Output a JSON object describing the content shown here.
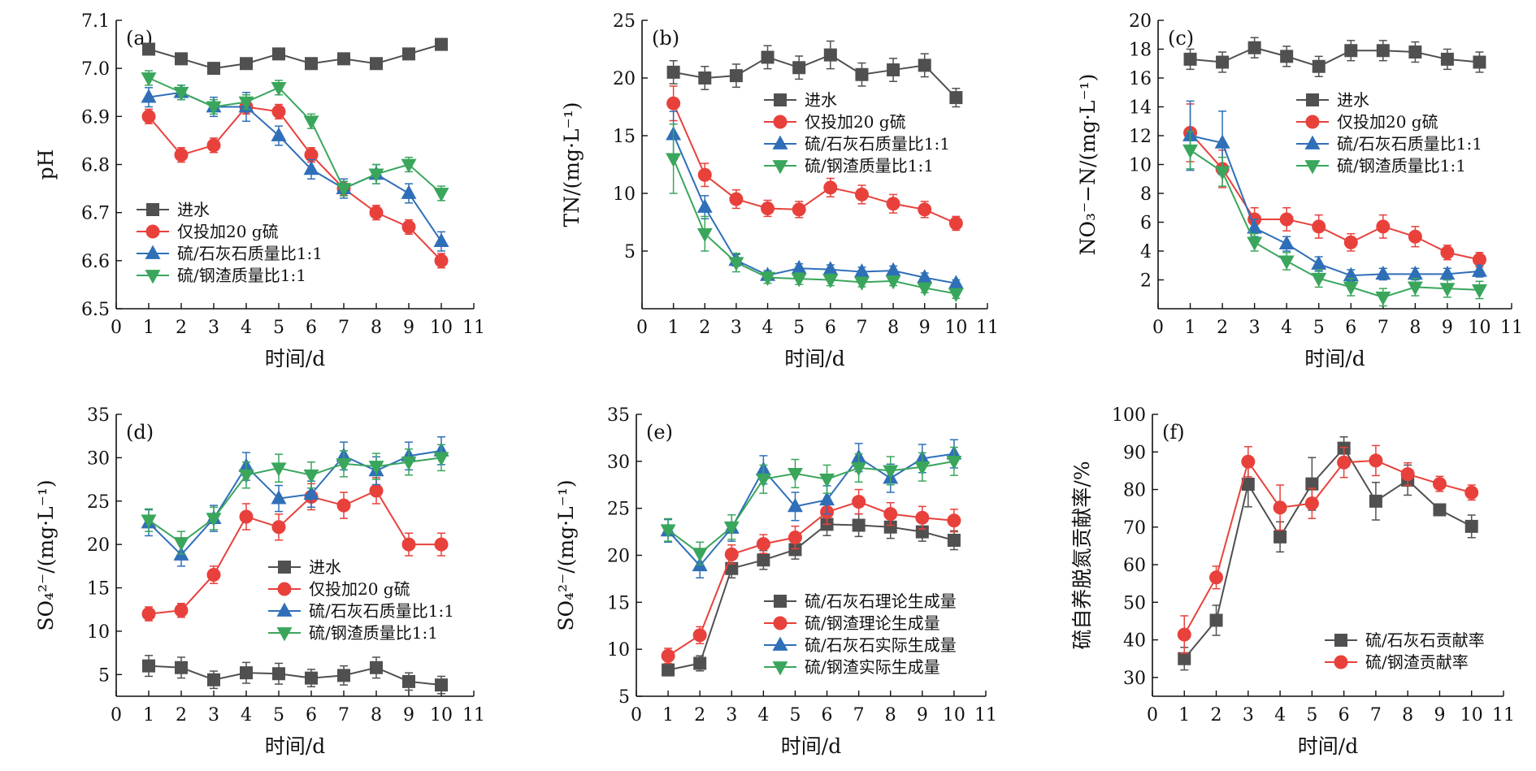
{
  "figure": {
    "x_axis_title": "时间/d"
  },
  "chart_data": [
    {
      "type": "line",
      "panel_label": "(a)",
      "ylabel": "pH",
      "xlabel": "时间/d",
      "xlim": [
        0,
        11
      ],
      "ylim": [
        6.5,
        7.1
      ],
      "yticks": [
        6.5,
        6.6,
        6.7,
        6.8,
        6.9,
        7.0,
        7.1
      ],
      "ytick_labels": [
        "6.5",
        "6.6",
        "6.7",
        "6.8",
        "6.9",
        "7.0",
        "7.1"
      ],
      "xticks": [
        0,
        1,
        2,
        3,
        4,
        5,
        6,
        7,
        8,
        9,
        10,
        11
      ],
      "x": [
        1,
        2,
        3,
        4,
        5,
        6,
        7,
        8,
        9,
        10
      ],
      "legend_position": "lower-left",
      "series": [
        {
          "name": "进水",
          "marker": "square",
          "color": "#505050",
          "values": [
            7.04,
            7.02,
            7.0,
            7.01,
            7.03,
            7.01,
            7.02,
            7.01,
            7.03,
            7.05
          ],
          "err": [
            0.01,
            0.01,
            0.01,
            0.01,
            0.01,
            0.01,
            0.01,
            0.01,
            0.01,
            0.01
          ]
        },
        {
          "name": "仅投加20 g硫",
          "marker": "circle",
          "color": "#e8413c",
          "values": [
            6.9,
            6.82,
            6.84,
            6.92,
            6.91,
            6.82,
            6.75,
            6.7,
            6.67,
            6.6
          ],
          "err": [
            0.015,
            0.015,
            0.015,
            0.015,
            0.015,
            0.015,
            0.015,
            0.015,
            0.015,
            0.015
          ]
        },
        {
          "name": "硫/石灰石质量比1:1",
          "marker": "triangle-up",
          "color": "#2f6fb8",
          "values": [
            6.94,
            6.95,
            6.92,
            6.92,
            6.86,
            6.79,
            6.75,
            6.78,
            6.74,
            6.64
          ],
          "err": [
            0.02,
            0.015,
            0.02,
            0.03,
            0.02,
            0.02,
            0.02,
            0.02,
            0.02,
            0.02
          ]
        },
        {
          "name": "硫/钢渣质量比1:1",
          "marker": "triangle-down",
          "color": "#3aa65c",
          "values": [
            6.98,
            6.95,
            6.92,
            6.93,
            6.96,
            6.89,
            6.75,
            6.78,
            6.8,
            6.74
          ],
          "err": [
            0.015,
            0.015,
            0.015,
            0.015,
            0.015,
            0.015,
            0.015,
            0.02,
            0.015,
            0.015
          ]
        }
      ]
    },
    {
      "type": "line",
      "panel_label": "(b)",
      "ylabel": "TN/(mg·L⁻¹)",
      "xlabel": "时间/d",
      "xlim": [
        0,
        11
      ],
      "ylim": [
        0,
        25
      ],
      "yticks": [
        5,
        10,
        15,
        20,
        25
      ],
      "ytick_labels": [
        "5",
        "10",
        "15",
        "20",
        "25"
      ],
      "xticks": [
        0,
        1,
        2,
        3,
        4,
        5,
        6,
        7,
        8,
        9,
        10,
        11
      ],
      "x": [
        1,
        2,
        3,
        4,
        5,
        6,
        7,
        8,
        9,
        10
      ],
      "legend_position": "top-right",
      "series": [
        {
          "name": "进水",
          "marker": "square",
          "color": "#505050",
          "values": [
            20.5,
            20.0,
            20.2,
            21.8,
            20.9,
            22.0,
            20.3,
            20.7,
            21.1,
            18.3
          ],
          "err": [
            1.0,
            1.0,
            1.0,
            1.0,
            1.0,
            1.2,
            1.0,
            1.0,
            1.0,
            0.8
          ]
        },
        {
          "name": "仅投加20 g硫",
          "marker": "circle",
          "color": "#e8413c",
          "values": [
            17.8,
            11.6,
            9.5,
            8.7,
            8.6,
            10.5,
            9.9,
            9.1,
            8.6,
            7.4
          ],
          "err": [
            1.5,
            1.0,
            0.8,
            0.7,
            0.7,
            0.8,
            0.8,
            0.8,
            0.7,
            0.6
          ]
        },
        {
          "name": "硫/石灰石质量比1:1",
          "marker": "triangle-up",
          "color": "#2f6fb8",
          "values": [
            15.1,
            8.8,
            4.2,
            2.9,
            3.5,
            3.4,
            3.2,
            3.3,
            2.7,
            2.2
          ],
          "err": [
            2.0,
            1.0,
            0.5,
            0.4,
            0.4,
            0.4,
            0.4,
            0.4,
            0.4,
            0.3
          ]
        },
        {
          "name": "硫/钢渣质量比1:1",
          "marker": "triangle-down",
          "color": "#3aa65c",
          "values": [
            13.0,
            6.5,
            4.0,
            2.7,
            2.6,
            2.5,
            2.3,
            2.4,
            1.8,
            1.3
          ],
          "err": [
            3.0,
            1.5,
            0.8,
            0.5,
            0.5,
            0.5,
            0.4,
            0.4,
            0.4,
            0.4
          ]
        }
      ]
    },
    {
      "type": "line",
      "panel_label": "(c)",
      "ylabel": "NO₃⁻−N/(mg·L⁻¹)",
      "xlabel": "时间/d",
      "xlim": [
        0,
        11
      ],
      "ylim": [
        0,
        20
      ],
      "yticks": [
        2,
        4,
        6,
        8,
        10,
        12,
        14,
        16,
        18,
        20
      ],
      "ytick_labels": [
        "2",
        "4",
        "6",
        "8",
        "10",
        "12",
        "14",
        "16",
        "18",
        "20"
      ],
      "xticks": [
        0,
        1,
        2,
        3,
        4,
        5,
        6,
        7,
        8,
        9,
        10,
        11
      ],
      "x": [
        1,
        2,
        3,
        4,
        5,
        6,
        7,
        8,
        9,
        10
      ],
      "legend_position": "top-right",
      "series": [
        {
          "name": "进水",
          "marker": "square",
          "color": "#505050",
          "values": [
            17.3,
            17.1,
            18.1,
            17.5,
            16.8,
            17.9,
            17.9,
            17.8,
            17.3,
            17.1
          ],
          "err": [
            0.7,
            0.7,
            0.7,
            0.7,
            0.7,
            0.7,
            0.7,
            0.7,
            0.7,
            0.7
          ]
        },
        {
          "name": "仅投加20 g硫",
          "marker": "circle",
          "color": "#e8413c",
          "values": [
            12.2,
            9.7,
            6.2,
            6.2,
            5.7,
            4.6,
            5.7,
            5.0,
            3.9,
            3.4
          ],
          "err": [
            2.0,
            1.3,
            0.8,
            0.8,
            0.8,
            0.6,
            0.8,
            0.7,
            0.5,
            0.5
          ]
        },
        {
          "name": "硫/石灰石质量比1:1",
          "marker": "triangle-up",
          "color": "#2f6fb8",
          "values": [
            12.0,
            11.5,
            5.6,
            4.5,
            3.1,
            2.3,
            2.4,
            2.4,
            2.4,
            2.6
          ],
          "err": [
            2.4,
            2.2,
            0.6,
            0.5,
            0.5,
            0.4,
            0.4,
            0.4,
            0.4,
            0.4
          ]
        },
        {
          "name": "硫/钢渣质量比1:1",
          "marker": "triangle-down",
          "color": "#3aa65c",
          "values": [
            11.0,
            9.5,
            4.6,
            3.3,
            2.1,
            1.5,
            0.8,
            1.5,
            1.4,
            1.3
          ],
          "err": [
            1.3,
            1.0,
            0.6,
            0.6,
            0.6,
            0.6,
            0.6,
            0.6,
            0.6,
            0.6
          ]
        }
      ]
    },
    {
      "type": "line",
      "panel_label": "(d)",
      "ylabel": "SO₄²⁻/(mg·L⁻¹)",
      "xlabel": "时间/d",
      "xlim": [
        0,
        11
      ],
      "ylim": [
        2.5,
        35
      ],
      "yticks": [
        5,
        10,
        15,
        20,
        25,
        30,
        35
      ],
      "ytick_labels": [
        "5",
        "10",
        "15",
        "20",
        "25",
        "30",
        "35"
      ],
      "xticks": [
        0,
        1,
        2,
        3,
        4,
        5,
        6,
        7,
        8,
        9,
        10,
        11
      ],
      "x": [
        1,
        2,
        3,
        4,
        5,
        6,
        7,
        8,
        9,
        10
      ],
      "legend_position": "lower-right",
      "series": [
        {
          "name": "进水",
          "marker": "square",
          "color": "#505050",
          "values": [
            6.0,
            5.8,
            4.4,
            5.2,
            5.1,
            4.6,
            4.9,
            5.8,
            4.2,
            3.8
          ],
          "err": [
            1.2,
            1.2,
            1.0,
            1.2,
            1.2,
            1.0,
            1.1,
            1.2,
            1.0,
            1.0
          ]
        },
        {
          "name": "仅投加20 g硫",
          "marker": "circle",
          "color": "#e8413c",
          "values": [
            12.0,
            12.4,
            16.5,
            23.2,
            22.0,
            25.5,
            24.5,
            26.2,
            20.0,
            20.0
          ],
          "err": [
            0.8,
            0.8,
            1.0,
            1.5,
            1.5,
            1.5,
            1.5,
            1.5,
            1.3,
            1.3
          ]
        },
        {
          "name": "硫/石灰石质量比1:1",
          "marker": "triangle-up",
          "color": "#2f6fb8",
          "values": [
            22.5,
            18.8,
            23.0,
            29.0,
            25.3,
            25.8,
            30.2,
            28.5,
            30.2,
            30.8
          ],
          "err": [
            1.5,
            1.3,
            1.5,
            1.6,
            1.5,
            1.5,
            1.6,
            1.6,
            1.6,
            1.6
          ]
        },
        {
          "name": "硫/钢渣质量比1:1",
          "marker": "triangle-down",
          "color": "#3aa65c",
          "values": [
            22.8,
            20.2,
            23.0,
            28.0,
            28.8,
            28.0,
            29.3,
            29.0,
            29.5,
            30.0
          ],
          "err": [
            1.3,
            1.3,
            1.3,
            1.5,
            1.6,
            1.5,
            1.5,
            1.5,
            1.5,
            1.5
          ]
        }
      ]
    },
    {
      "type": "line",
      "panel_label": "(e)",
      "ylabel": "SO₄²⁻/(mg·L⁻¹)",
      "xlabel": "时间/d",
      "xlim": [
        0,
        11
      ],
      "ylim": [
        5,
        35
      ],
      "yticks": [
        5,
        10,
        15,
        20,
        25,
        30,
        35
      ],
      "ytick_labels": [
        "5",
        "10",
        "15",
        "20",
        "25",
        "30",
        "35"
      ],
      "xticks": [
        0,
        1,
        2,
        3,
        4,
        5,
        6,
        7,
        8,
        9,
        10,
        11
      ],
      "x": [
        1,
        2,
        3,
        4,
        5,
        6,
        7,
        8,
        9,
        10
      ],
      "legend_position": "lower-right",
      "series": [
        {
          "name": "硫/石灰石理论生成量",
          "marker": "square",
          "color": "#505050",
          "values": [
            7.8,
            8.5,
            18.6,
            19.5,
            20.6,
            23.3,
            23.2,
            23.0,
            22.5,
            21.6
          ],
          "err": [
            0.6,
            0.8,
            1.0,
            1.0,
            1.0,
            1.2,
            1.2,
            1.2,
            1.0,
            1.0
          ]
        },
        {
          "name": "硫/钢渣理论生成量",
          "marker": "circle",
          "color": "#e8413c",
          "values": [
            9.3,
            11.5,
            20.1,
            21.2,
            21.9,
            24.6,
            25.7,
            24.4,
            24.0,
            23.7
          ],
          "err": [
            0.8,
            0.9,
            1.0,
            1.0,
            1.2,
            1.3,
            1.3,
            1.2,
            1.2,
            1.2
          ]
        },
        {
          "name": "硫/石灰石实际生成量",
          "marker": "triangle-up",
          "color": "#2f6fb8",
          "values": [
            22.6,
            18.9,
            22.9,
            29.1,
            25.2,
            25.9,
            30.4,
            28.2,
            30.3,
            30.8
          ],
          "err": [
            1.2,
            1.3,
            1.4,
            1.5,
            1.5,
            1.5,
            1.5,
            1.5,
            1.5,
            1.5
          ]
        },
        {
          "name": "硫/钢渣实际生成量",
          "marker": "triangle-down",
          "color": "#3aa65c",
          "values": [
            22.7,
            20.2,
            23.0,
            28.1,
            28.7,
            28.1,
            29.3,
            29.0,
            29.4,
            30.0
          ],
          "err": [
            1.2,
            1.2,
            1.3,
            1.5,
            1.5,
            1.5,
            1.5,
            1.5,
            1.5,
            1.5
          ]
        }
      ]
    },
    {
      "type": "line",
      "panel_label": "(f)",
      "ylabel": "硫自养脱氮贡献率/%",
      "xlabel": "时间/d",
      "xlim": [
        0,
        11
      ],
      "ylim": [
        25,
        100
      ],
      "yticks": [
        30,
        40,
        50,
        60,
        70,
        80,
        90,
        100
      ],
      "ytick_labels": [
        "30",
        "40",
        "50",
        "60",
        "70",
        "80",
        "90",
        "100"
      ],
      "xticks": [
        0,
        1,
        2,
        3,
        4,
        5,
        6,
        7,
        8,
        9,
        10,
        11
      ],
      "x": [
        1,
        2,
        3,
        4,
        5,
        6,
        7,
        8,
        9,
        10
      ],
      "legend_position": "lower-right",
      "series": [
        {
          "name": "硫/石灰石贡献率",
          "marker": "square",
          "color": "#505050",
          "values": [
            35.0,
            45.2,
            81.4,
            67.4,
            81.5,
            91.0,
            76.9,
            82.5,
            74.6,
            70.2
          ],
          "err": [
            3.0,
            4.0,
            6.0,
            4.0,
            7.0,
            3.0,
            5.0,
            4.0,
            1.0,
            3.0
          ]
        },
        {
          "name": "硫/钢渣贡献率",
          "marker": "circle",
          "color": "#e8413c",
          "values": [
            41.4,
            56.6,
            87.4,
            75.2,
            76.3,
            87.2,
            87.7,
            84.1,
            81.5,
            79.2
          ],
          "err": [
            5.0,
            3.0,
            4.0,
            6.0,
            4.0,
            4.0,
            4.0,
            3.0,
            2.0,
            2.0
          ]
        }
      ]
    }
  ]
}
